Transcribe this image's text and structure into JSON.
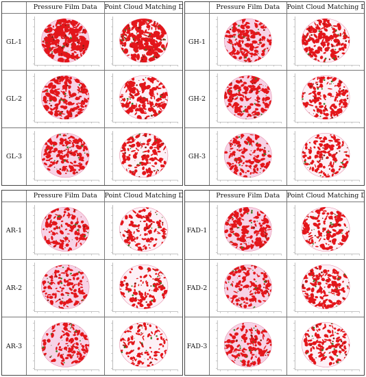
{
  "headers": {
    "pressure": "Pressure Film Data",
    "point_cloud": "Point Cloud Matching Data"
  },
  "panels": [
    {
      "rows": [
        "GL-1",
        "GL-2",
        "GL-3"
      ]
    },
    {
      "rows": [
        "GH-1",
        "GH-2",
        "GH-3"
      ]
    },
    {
      "rows": [
        "AR-1",
        "AR-2",
        "AR-3"
      ]
    },
    {
      "rows": [
        "FAD-1",
        "FAD-2",
        "FAD-3"
      ]
    }
  ],
  "colors": {
    "disc_fill": "#f7d2e6",
    "contact_red": "#e3161b",
    "contact_dark": "#8a1a12",
    "contact_green": "#3c7d2a",
    "circle_outline": "#e58aa6",
    "axis": "#888888"
  },
  "densities": [
    [
      [
        0.85,
        0.8
      ],
      [
        0.55,
        0.5
      ],
      [
        0.45,
        0.45
      ]
    ],
    [
      [
        0.5,
        0.55
      ],
      [
        0.5,
        0.45
      ],
      [
        0.4,
        0.35
      ]
    ],
    [
      [
        0.4,
        0.35
      ],
      [
        0.35,
        0.3
      ],
      [
        0.35,
        0.25
      ]
    ],
    [
      [
        0.5,
        0.45
      ],
      [
        0.4,
        0.5
      ],
      [
        0.4,
        0.35
      ]
    ]
  ]
}
